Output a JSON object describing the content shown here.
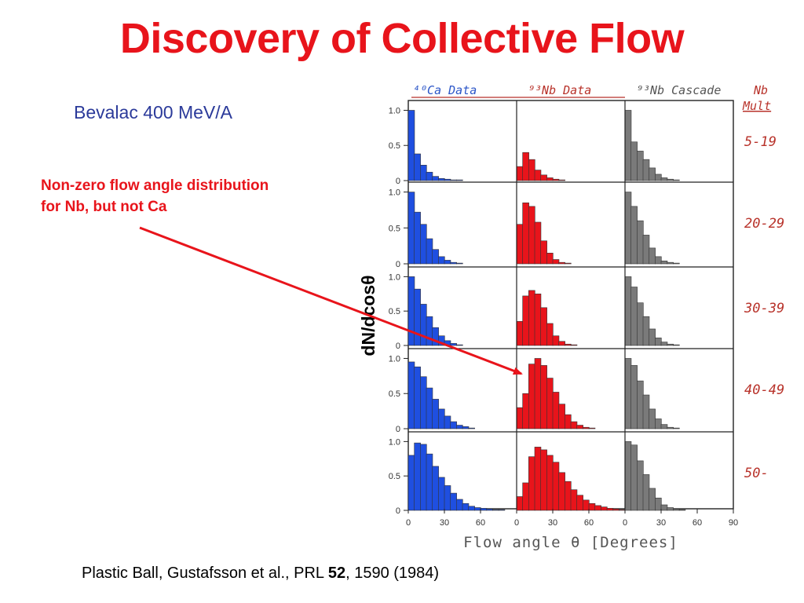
{
  "slide": {
    "title": "Discovery of Collective Flow",
    "subtitle": "Bevalac 400 MeV/A",
    "note_lines": [
      "Non-zero flow angle distribution",
      "for Nb, but not Ca"
    ],
    "citation_prefix": "Plastic Ball, Gustafsson et al., PRL ",
    "citation_volume": "52",
    "citation_suffix": ", 1590 (1984)"
  },
  "colors": {
    "title": "#e8141b",
    "subtitle": "#2b3a9a",
    "ca": "#1f4fe0",
    "nb": "#e8141b",
    "cascade": "#7a7a7a",
    "handwriting_blue": "#2c56c8",
    "handwriting_red": "#b8322a",
    "arrow": "#e8141b"
  },
  "chart_data": {
    "type": "bar",
    "ylabel": "dN/dcosθ",
    "xlabel": "Flow angle  θ  [Degrees]",
    "x_ticks": [
      0,
      30,
      60,
      90
    ],
    "y_ticks": [
      "0",
      "0.5",
      "1.0"
    ],
    "ylim": [
      0,
      1.05
    ],
    "bin_width_deg": 5,
    "columns": [
      {
        "name": "⁴⁰Ca Data",
        "color": "blue"
      },
      {
        "name": "⁹³Nb Data",
        "color": "red"
      },
      {
        "name": "⁹³Nb Cascade",
        "color": "gray"
      }
    ],
    "rows_header": [
      "Nb",
      "Mult"
    ],
    "rows": [
      {
        "label": "5-19",
        "ca": [
          1.0,
          0.38,
          0.22,
          0.12,
          0.06,
          0.03,
          0.02,
          0.01,
          0.01,
          0,
          0,
          0,
          0,
          0,
          0,
          0,
          0,
          0
        ],
        "nb": [
          0.2,
          0.4,
          0.3,
          0.15,
          0.08,
          0.04,
          0.02,
          0.01,
          0,
          0,
          0,
          0,
          0,
          0,
          0,
          0,
          0,
          0
        ],
        "cascade": [
          1.0,
          0.55,
          0.42,
          0.3,
          0.18,
          0.09,
          0.04,
          0.02,
          0.01,
          0,
          0,
          0,
          0,
          0,
          0,
          0,
          0,
          0
        ]
      },
      {
        "label": "20-29",
        "ca": [
          1.0,
          0.72,
          0.55,
          0.35,
          0.2,
          0.1,
          0.05,
          0.02,
          0.01,
          0,
          0,
          0,
          0,
          0,
          0,
          0,
          0,
          0
        ],
        "nb": [
          0.55,
          0.85,
          0.8,
          0.58,
          0.32,
          0.15,
          0.06,
          0.02,
          0.01,
          0,
          0,
          0,
          0,
          0,
          0,
          0,
          0,
          0
        ],
        "cascade": [
          1.0,
          0.8,
          0.6,
          0.4,
          0.22,
          0.1,
          0.04,
          0.02,
          0.01,
          0,
          0,
          0,
          0,
          0,
          0,
          0,
          0,
          0
        ]
      },
      {
        "label": "30-39",
        "ca": [
          1.0,
          0.82,
          0.6,
          0.42,
          0.26,
          0.14,
          0.07,
          0.03,
          0.01,
          0,
          0,
          0,
          0,
          0,
          0,
          0,
          0,
          0
        ],
        "nb": [
          0.35,
          0.72,
          0.8,
          0.75,
          0.55,
          0.32,
          0.14,
          0.06,
          0.02,
          0.01,
          0,
          0,
          0,
          0,
          0,
          0,
          0,
          0
        ],
        "cascade": [
          1.0,
          0.85,
          0.62,
          0.42,
          0.24,
          0.11,
          0.05,
          0.02,
          0.01,
          0,
          0,
          0,
          0,
          0,
          0,
          0,
          0,
          0
        ]
      },
      {
        "label": "40-49",
        "ca": [
          0.95,
          0.88,
          0.74,
          0.58,
          0.42,
          0.28,
          0.18,
          0.1,
          0.05,
          0.03,
          0.01,
          0,
          0,
          0,
          0,
          0,
          0,
          0
        ],
        "nb": [
          0.3,
          0.5,
          0.92,
          1.0,
          0.9,
          0.72,
          0.52,
          0.35,
          0.2,
          0.1,
          0.05,
          0.02,
          0.01,
          0,
          0,
          0,
          0,
          0
        ],
        "cascade": [
          1.0,
          0.9,
          0.68,
          0.48,
          0.28,
          0.14,
          0.06,
          0.02,
          0.01,
          0,
          0,
          0,
          0,
          0,
          0,
          0,
          0,
          0
        ]
      },
      {
        "label": "50-",
        "ca": [
          0.8,
          0.98,
          0.96,
          0.82,
          0.64,
          0.48,
          0.36,
          0.25,
          0.16,
          0.1,
          0.06,
          0.04,
          0.03,
          0.02,
          0.01,
          0.01,
          0,
          0
        ],
        "nb": [
          0.2,
          0.4,
          0.78,
          0.92,
          0.88,
          0.8,
          0.7,
          0.55,
          0.42,
          0.3,
          0.22,
          0.15,
          0.1,
          0.07,
          0.05,
          0.03,
          0.02,
          0.01
        ],
        "cascade": [
          1.0,
          0.95,
          0.72,
          0.52,
          0.32,
          0.18,
          0.08,
          0.04,
          0.02,
          0.01,
          0,
          0,
          0,
          0,
          0,
          0,
          0,
          0
        ]
      }
    ]
  }
}
